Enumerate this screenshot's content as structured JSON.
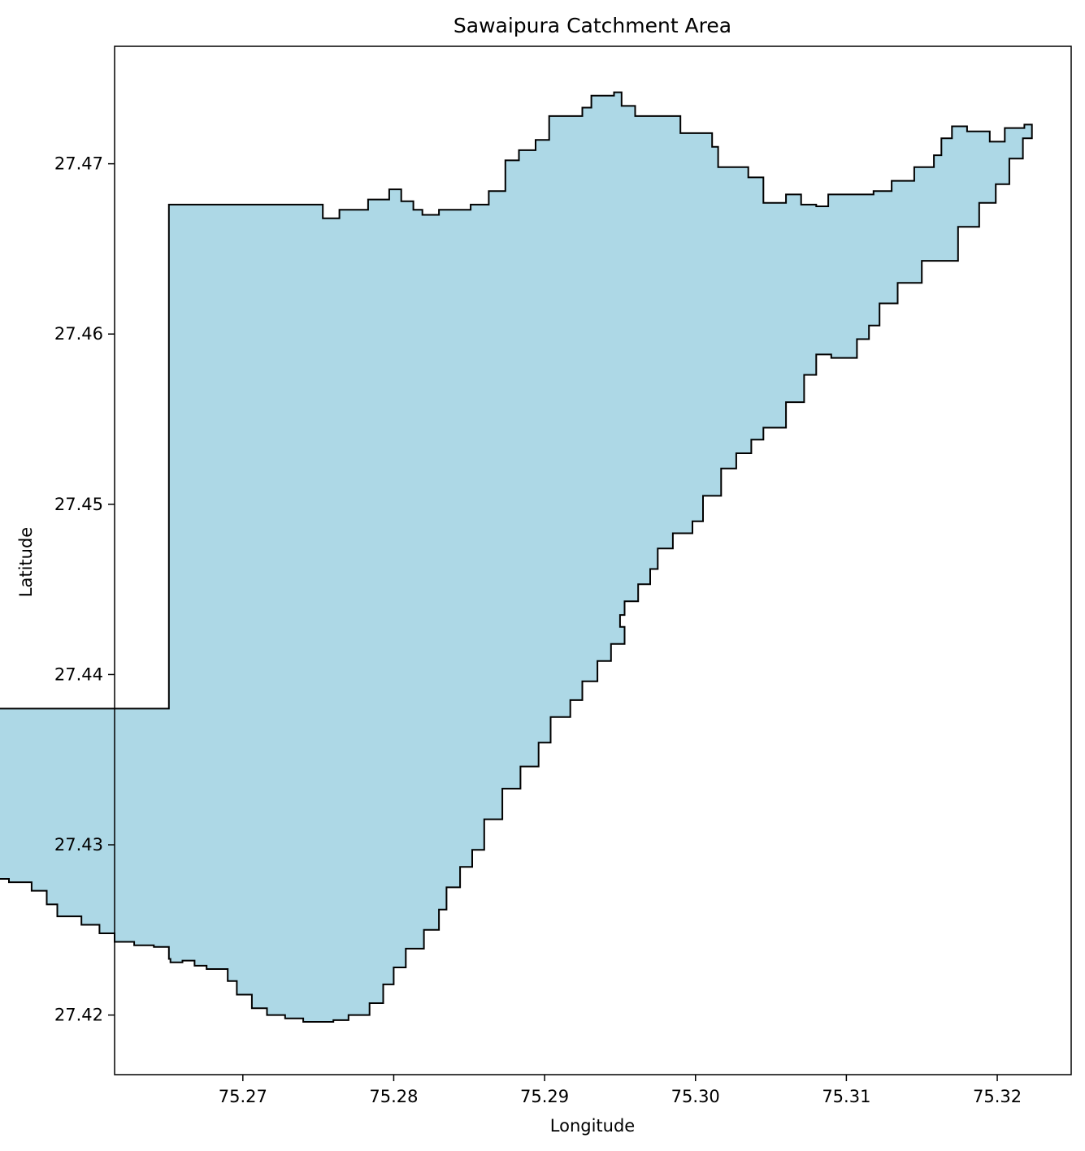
{
  "chart_data": {
    "type": "map",
    "title": "Sawaipura Catchment Area",
    "xlabel": "Longitude",
    "ylabel": "Latitude",
    "xlim": [
      75.2615,
      75.3249
    ],
    "ylim": [
      27.4165,
      27.4769
    ],
    "x_ticks": [
      75.27,
      75.28,
      75.29,
      75.3,
      75.31,
      75.32
    ],
    "y_ticks": [
      27.42,
      27.43,
      27.44,
      27.45,
      27.46,
      27.47
    ],
    "x_tick_labels": [
      "75.27",
      "75.28",
      "75.29",
      "75.30",
      "75.31",
      "75.32"
    ],
    "y_tick_labels": [
      "27.42",
      "27.43",
      "27.44",
      "27.45",
      "27.46",
      "27.47"
    ],
    "grid": false,
    "fill_color": "#add8e6",
    "edge_color": "#000000",
    "boundary": [
      [
        75.2651,
        27.4676
      ],
      [
        75.2743,
        27.4676
      ],
      [
        75.2753,
        27.4668
      ],
      [
        75.2764,
        27.4673
      ],
      [
        75.2783,
        27.4679
      ],
      [
        75.2797,
        27.4685
      ],
      [
        75.2805,
        27.4678
      ],
      [
        75.2813,
        27.4673
      ],
      [
        75.2819,
        27.467
      ],
      [
        75.283,
        27.4673
      ],
      [
        75.2851,
        27.4676
      ],
      [
        75.2863,
        27.4684
      ],
      [
        75.2874,
        27.4702
      ],
      [
        75.2883,
        27.4708
      ],
      [
        75.2894,
        27.4714
      ],
      [
        75.2903,
        27.4728
      ],
      [
        75.2925,
        27.4733
      ],
      [
        75.2931,
        27.474
      ],
      [
        75.2946,
        27.4742
      ],
      [
        75.2951,
        27.4734
      ],
      [
        75.296,
        27.4728
      ],
      [
        75.2976,
        27.4728
      ],
      [
        75.299,
        27.4718
      ],
      [
        75.3011,
        27.471
      ],
      [
        75.3015,
        27.4698
      ],
      [
        75.3035,
        27.4692
      ],
      [
        75.3045,
        27.4677
      ],
      [
        75.306,
        27.4682
      ],
      [
        75.307,
        27.4676
      ],
      [
        75.308,
        27.4675
      ],
      [
        75.3088,
        27.4682
      ],
      [
        75.3118,
        27.4684
      ],
      [
        75.313,
        27.469
      ],
      [
        75.3145,
        27.4698
      ],
      [
        75.3158,
        27.4705
      ],
      [
        75.3163,
        27.4715
      ],
      [
        75.317,
        27.4722
      ],
      [
        75.318,
        27.4719
      ],
      [
        75.3195,
        27.4713
      ],
      [
        75.3205,
        27.4721
      ],
      [
        75.3218,
        27.4723
      ],
      [
        75.3223,
        27.4715
      ],
      [
        75.3217,
        27.4703
      ],
      [
        75.3208,
        27.4688
      ],
      [
        75.3199,
        27.4677
      ],
      [
        75.3188,
        27.4663
      ],
      [
        75.3174,
        27.4643
      ],
      [
        75.315,
        27.463
      ],
      [
        75.3134,
        27.4618
      ],
      [
        75.3122,
        27.4605
      ],
      [
        75.3115,
        27.4597
      ],
      [
        75.3107,
        27.4586
      ],
      [
        75.309,
        27.4588
      ],
      [
        75.308,
        27.4576
      ],
      [
        75.3072,
        27.456
      ],
      [
        75.306,
        27.4545
      ],
      [
        75.3045,
        27.4538
      ],
      [
        75.3037,
        27.453
      ],
      [
        75.3027,
        27.4521
      ],
      [
        75.3017,
        27.4505
      ],
      [
        75.3005,
        27.449
      ],
      [
        75.2998,
        27.4483
      ],
      [
        75.2985,
        27.4474
      ],
      [
        75.2975,
        27.4462
      ],
      [
        75.297,
        27.4453
      ],
      [
        75.2962,
        27.4443
      ],
      [
        75.2953,
        27.4435
      ],
      [
        75.295,
        27.4428
      ],
      [
        75.2953,
        27.4418
      ],
      [
        75.2944,
        27.4408
      ],
      [
        75.2935,
        27.4396
      ],
      [
        75.2925,
        27.4385
      ],
      [
        75.2917,
        27.4375
      ],
      [
        75.2904,
        27.436
      ],
      [
        75.2896,
        27.4346
      ],
      [
        75.2884,
        27.4333
      ],
      [
        75.2872,
        27.4315
      ],
      [
        75.286,
        27.4297
      ],
      [
        75.2852,
        27.4287
      ],
      [
        75.2844,
        27.4275
      ],
      [
        75.2835,
        27.4262
      ],
      [
        75.283,
        27.425
      ],
      [
        75.282,
        27.4239
      ],
      [
        75.2808,
        27.4228
      ],
      [
        75.28,
        27.4218
      ],
      [
        75.2793,
        27.4207
      ],
      [
        75.2784,
        27.42
      ],
      [
        75.277,
        27.4197
      ],
      [
        75.276,
        27.4196
      ],
      [
        75.2748,
        27.4196
      ],
      [
        75.274,
        27.4198
      ],
      [
        75.2728,
        27.42
      ],
      [
        75.2716,
        27.4204
      ],
      [
        75.2706,
        27.4212
      ],
      [
        75.2696,
        27.422
      ],
      [
        75.269,
        27.4227
      ],
      [
        75.2676,
        27.4229
      ],
      [
        75.2668,
        27.4232
      ],
      [
        75.266,
        27.4231
      ],
      [
        75.2652,
        27.4233
      ],
      [
        75.2651,
        27.424
      ],
      [
        75.2641,
        27.4241
      ],
      [
        75.2628,
        27.4243
      ],
      [
        75.2615,
        27.4248
      ],
      [
        75.2605,
        27.4253
      ],
      [
        75.2593,
        27.4258
      ],
      [
        75.2577,
        27.4265
      ],
      [
        75.257,
        27.4273
      ],
      [
        75.256,
        27.4278
      ],
      [
        75.2545,
        27.428
      ],
      [
        75.2538,
        27.4287
      ],
      [
        75.2533,
        27.4295
      ],
      [
        75.2528,
        27.4303
      ],
      [
        75.2523,
        27.431
      ],
      [
        75.2515,
        27.4318
      ],
      [
        75.2507,
        27.4325
      ],
      [
        75.25,
        27.433
      ],
      [
        75.2495,
        27.4338
      ],
      [
        75.25,
        27.4343
      ],
      [
        75.2504,
        27.435
      ],
      [
        75.2507,
        27.4356
      ],
      [
        75.2505,
        27.4364
      ],
      [
        75.2502,
        27.4372
      ],
      [
        75.2501,
        27.438
      ],
      [
        75.2651,
        27.4676
      ]
    ]
  }
}
